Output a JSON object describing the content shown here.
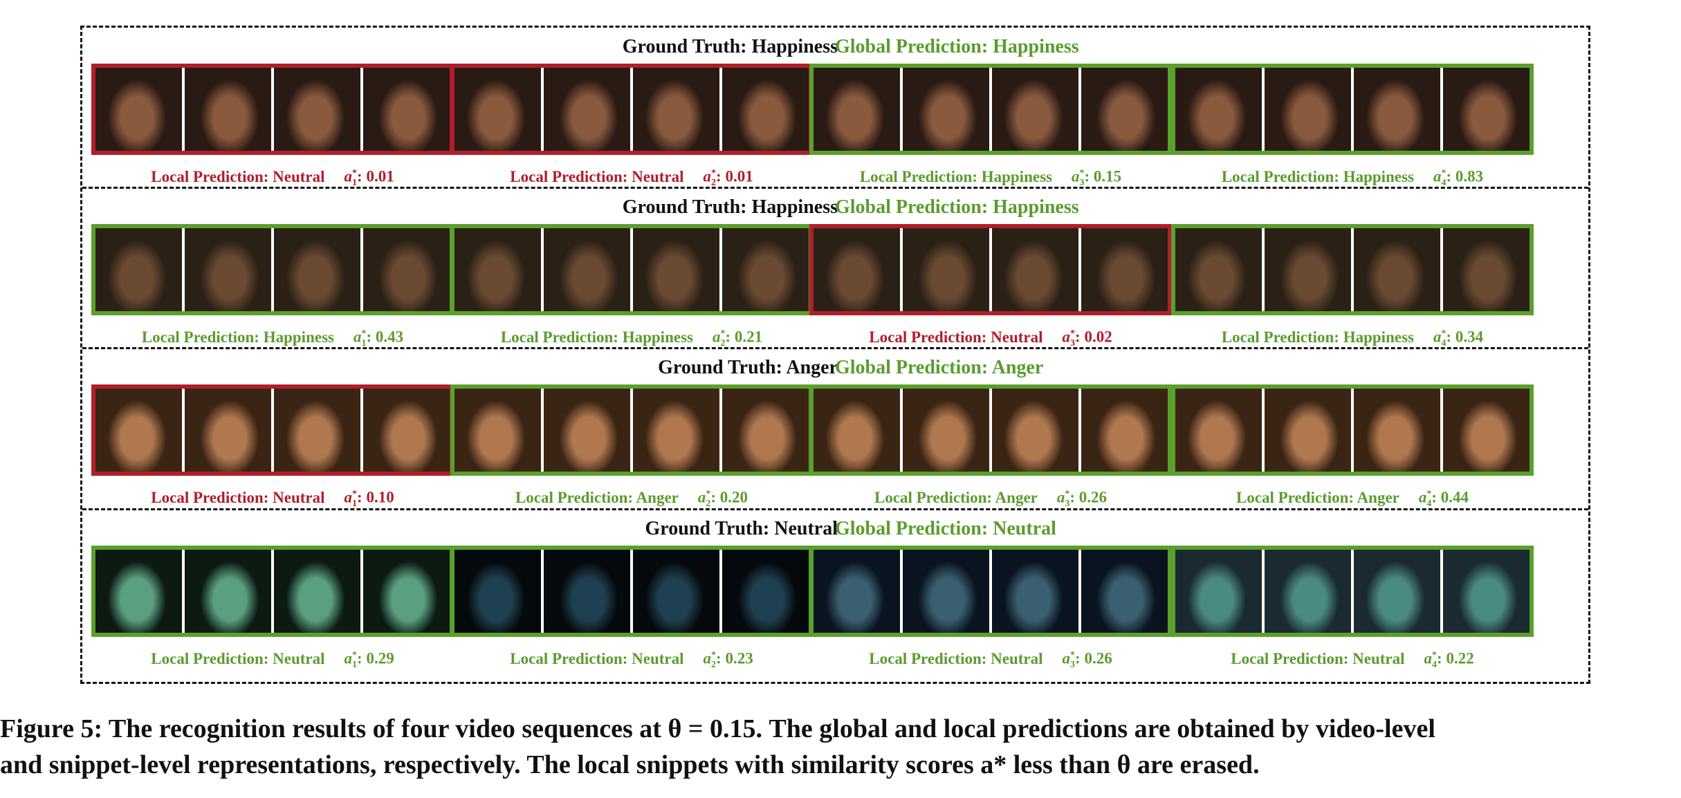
{
  "figure": {
    "rows": [
      {
        "ground_truth": "Ground Truth: Happiness",
        "global_prediction": "Global Prediction: Happiness",
        "snippets": [
          {
            "status": "bad",
            "prediction": "Local Prediction: Neutral",
            "score_label": "a",
            "score_index": "1",
            "score": ": 0.01",
            "tone": "face-a"
          },
          {
            "status": "bad",
            "prediction": "Local Prediction: Neutral",
            "score_label": "a",
            "score_index": "2",
            "score": ": 0.01",
            "tone": "face-a"
          },
          {
            "status": "good",
            "prediction": "Local Prediction: Happiness",
            "score_label": "a",
            "score_index": "3",
            "score": ": 0.15",
            "tone": "face-a"
          },
          {
            "status": "good",
            "prediction": "Local Prediction: Happiness",
            "score_label": "a",
            "score_index": "4",
            "score": ": 0.83",
            "tone": "face-a"
          }
        ]
      },
      {
        "ground_truth": "Ground Truth: Happiness",
        "global_prediction": "Global Prediction: Happiness",
        "snippets": [
          {
            "status": "good",
            "prediction": "Local Prediction: Happiness",
            "score_label": "a",
            "score_index": "1",
            "score": ": 0.43",
            "tone": "face-b"
          },
          {
            "status": "good",
            "prediction": "Local Prediction: Happiness",
            "score_label": "a",
            "score_index": "2",
            "score": ": 0.21",
            "tone": "face-b"
          },
          {
            "status": "bad",
            "prediction": "Local Prediction: Neutral",
            "score_label": "a",
            "score_index": "3",
            "score": ": 0.02",
            "tone": "face-b"
          },
          {
            "status": "good",
            "prediction": "Local Prediction: Happiness",
            "score_label": "a",
            "score_index": "4",
            "score": ": 0.34",
            "tone": "face-b"
          }
        ]
      },
      {
        "ground_truth": "Ground Truth: Anger",
        "global_prediction": "Global Prediction: Anger",
        "snippets": [
          {
            "status": "bad",
            "prediction": "Local Prediction: Neutral",
            "score_label": "a",
            "score_index": "1",
            "score": ": 0.10",
            "tone": "face-c"
          },
          {
            "status": "good",
            "prediction": "Local Prediction: Anger",
            "score_label": "a",
            "score_index": "2",
            "score": ": 0.20",
            "tone": "face-c"
          },
          {
            "status": "good",
            "prediction": "Local Prediction: Anger",
            "score_label": "a",
            "score_index": "3",
            "score": ": 0.26",
            "tone": "face-c"
          },
          {
            "status": "good",
            "prediction": "Local Prediction: Anger",
            "score_label": "a",
            "score_index": "4",
            "score": ": 0.44",
            "tone": "face-c"
          }
        ]
      },
      {
        "ground_truth": "Ground Truth: Neutral",
        "global_prediction": "Global Prediction: Neutral",
        "snippets": [
          {
            "status": "good",
            "prediction": "Local Prediction: Neutral",
            "score_label": "a",
            "score_index": "1",
            "score": ": 0.29",
            "tone": "face-d"
          },
          {
            "status": "good",
            "prediction": "Local Prediction: Neutral",
            "score_label": "a",
            "score_index": "2",
            "score": ": 0.23",
            "tone": "face-e"
          },
          {
            "status": "good",
            "prediction": "Local Prediction: Neutral",
            "score_label": "a",
            "score_index": "3",
            "score": ": 0.26",
            "tone": "face-f"
          },
          {
            "status": "good",
            "prediction": "Local Prediction: Neutral",
            "score_label": "a",
            "score_index": "4",
            "score": ": 0.22",
            "tone": "face-g"
          }
        ]
      }
    ],
    "caption": {
      "line1": "Figure 5: The recognition results of four video sequences at θ = 0.15. The global and local predictions are obtained by video-level",
      "line2": "and snippet-level representations, respectively. The local snippets with similarity scores a* less than θ are erased."
    },
    "colors": {
      "correct": "#5aa02c",
      "incorrect": "#b01e2a"
    }
  }
}
